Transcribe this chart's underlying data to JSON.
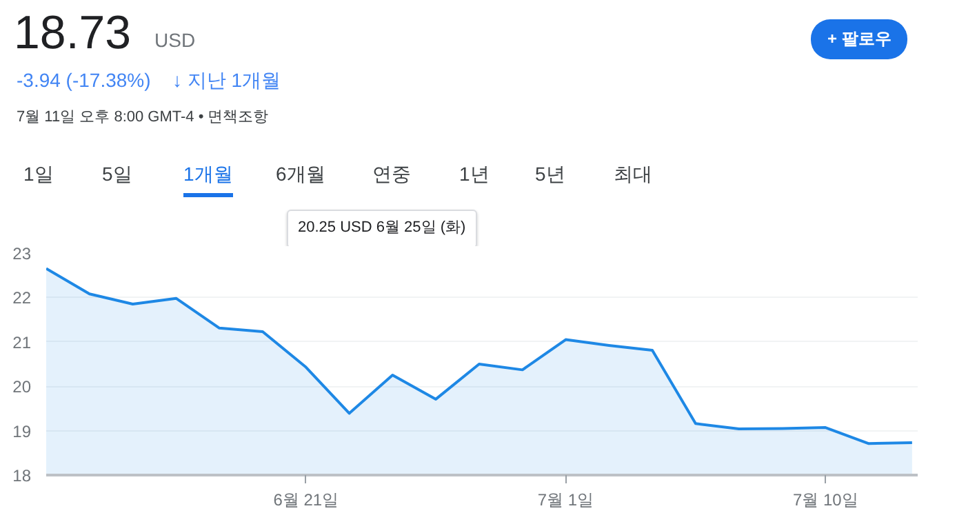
{
  "chart_data": {
    "type": "area",
    "title": "18.73",
    "annotations": [
      "USD",
      "-3.94 (-17.38%)",
      "↓ 지난 1개월",
      "7월 11일 오후 8:00 GMT-4 • 면책조항",
      "+ 팔로우",
      "1일",
      "5일",
      "1개월",
      "6개월",
      "연중",
      "1년",
      "5년",
      "최대",
      "20.25 USD  6월 25일 (화)"
    ],
    "categories": [
      null,
      null,
      null,
      null,
      null,
      null,
      "6월 21일",
      null,
      null,
      null,
      null,
      null,
      "7월 1일",
      null,
      null,
      null,
      null,
      null,
      "7월 10일",
      null,
      null
    ],
    "series": [
      {
        "color": "#1e88e5",
        "values": [
          22.65,
          22.08,
          21.85,
          21.98,
          21.31,
          21.23,
          20.43,
          19.39,
          20.25,
          19.71,
          20.5,
          20.37,
          21.05,
          20.92,
          20.81,
          19.16,
          19.04,
          19.05,
          19.07,
          18.71,
          18.73
        ]
      }
    ],
    "ylim": [
      18,
      23
    ],
    "yticks": [
      18,
      19,
      20,
      21,
      22,
      23
    ],
    "grid": "y",
    "marker": "none",
    "line_style": "solid"
  }
}
